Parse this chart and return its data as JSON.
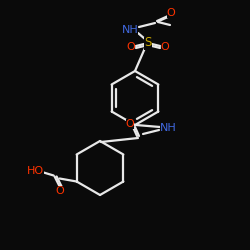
{
  "bg_color": "#0a0a0a",
  "bond_color": "#e8e8e8",
  "cN": "#4169e1",
  "cO": "#ff3300",
  "cS": "#ccaa00",
  "lw": 1.6,
  "fs": 7.5,
  "figsize": [
    2.5,
    2.5
  ],
  "dpi": 100,
  "xlim": [
    0,
    250
  ],
  "ylim": [
    0,
    250
  ]
}
